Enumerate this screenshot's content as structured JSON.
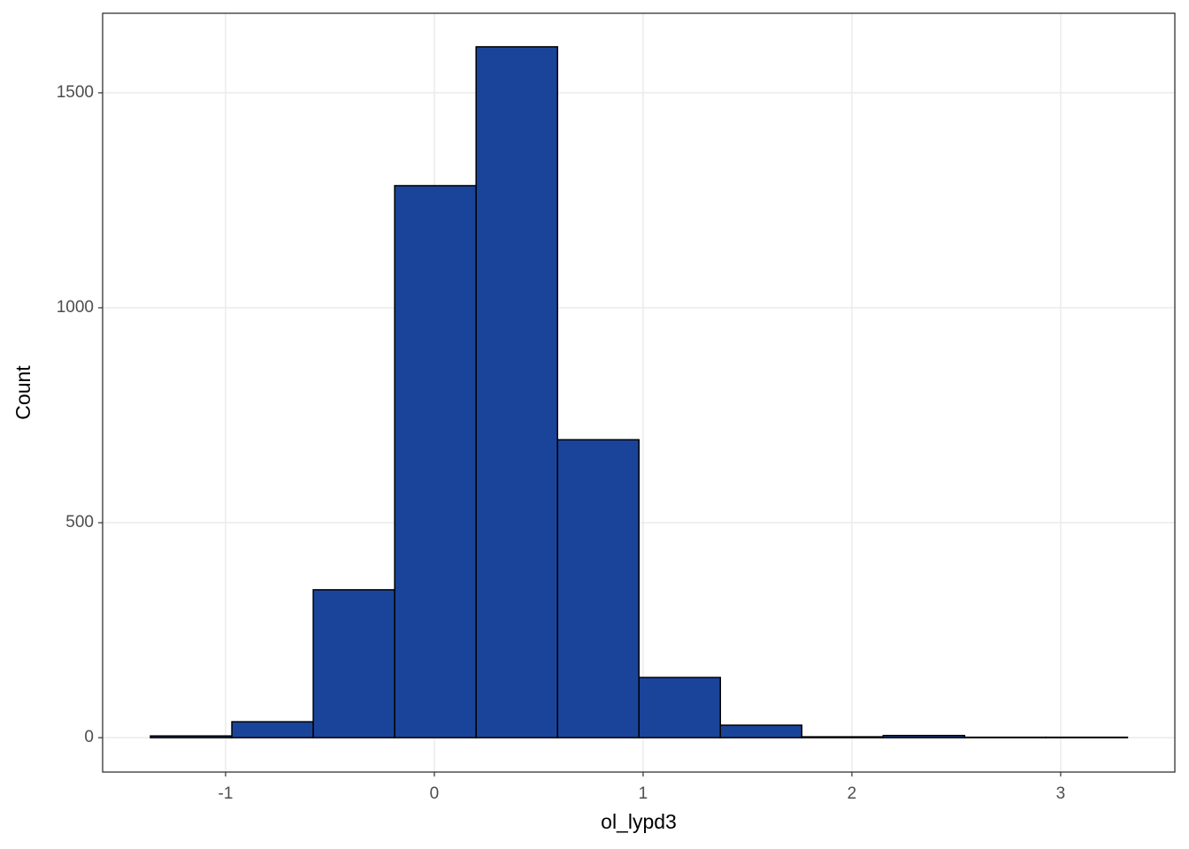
{
  "chart_data": {
    "type": "histogram",
    "x_label": "ol_lypd3",
    "y_label": "Count",
    "bins": [
      -1.36,
      -0.97,
      -0.58,
      -0.19,
      0.2,
      0.59,
      0.98,
      1.37,
      1.76,
      2.15,
      2.54,
      2.93,
      3.32
    ],
    "values": [
      4,
      37,
      344,
      1284,
      1607,
      693,
      140,
      29,
      2,
      5,
      1,
      1
    ],
    "color": "#1a4499",
    "edge_color": "#000000",
    "xlim": [
      -1.589,
      3.547
    ],
    "xticks": [
      -1,
      0,
      1,
      2,
      3
    ],
    "ylim": [
      -80,
      1685
    ],
    "yticks": [
      0,
      500,
      1000,
      1500
    ],
    "grid": true
  }
}
